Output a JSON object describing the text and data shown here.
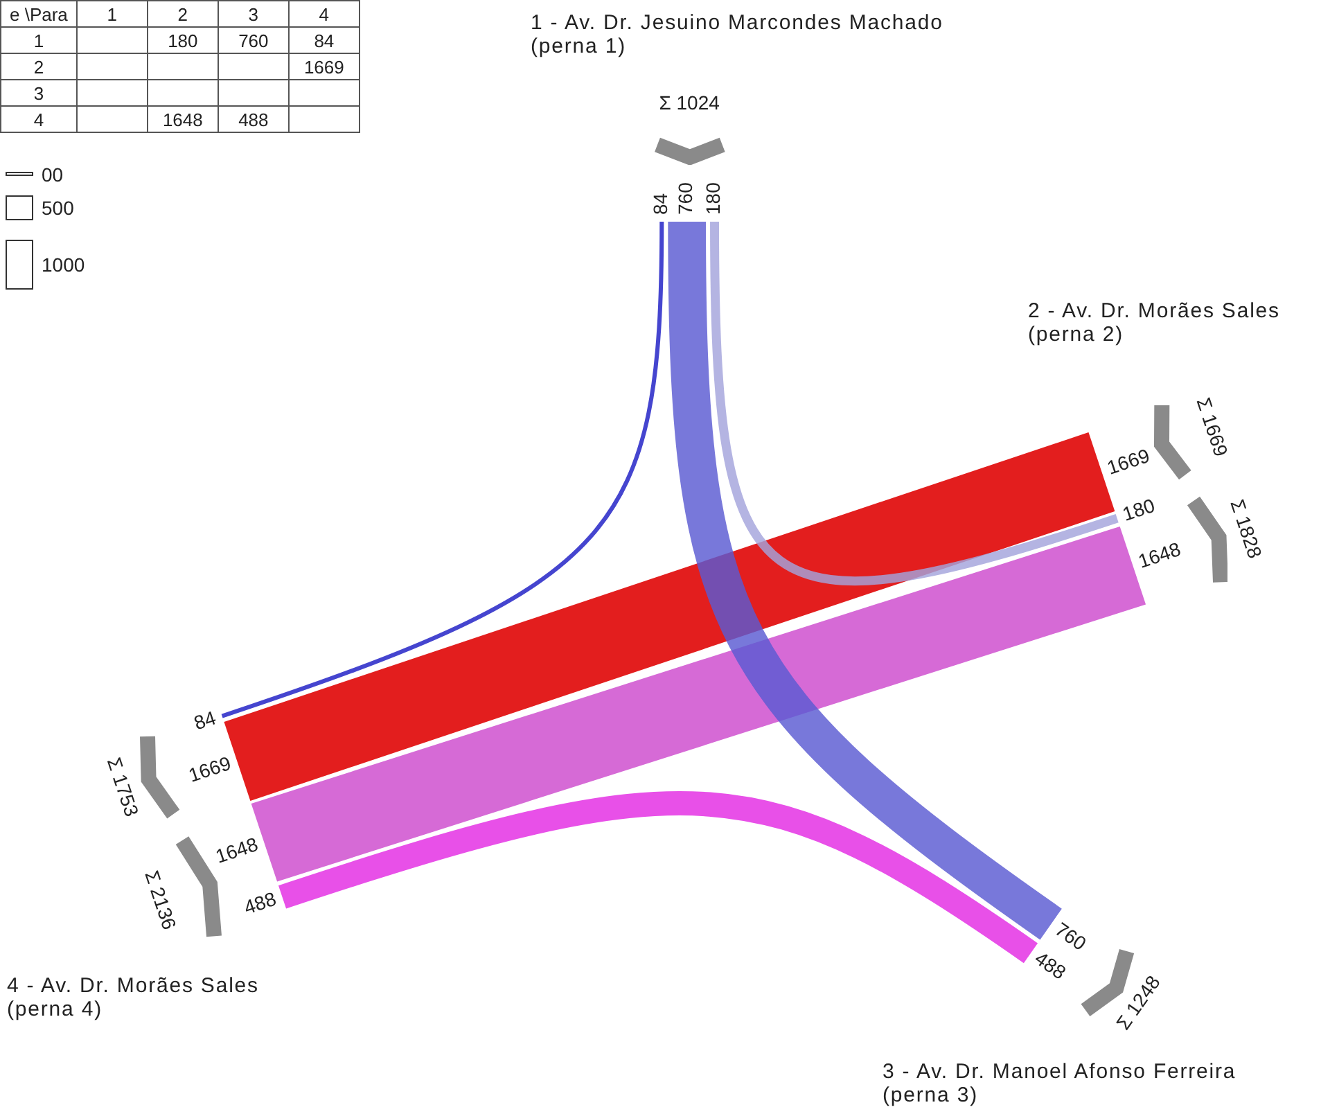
{
  "chart_data": [
    {
      "type": "heatmap",
      "categories": [
        "1",
        "2",
        "3",
        "4"
      ],
      "y_categories": [
        "1",
        "2",
        "3",
        "4"
      ],
      "cells": [
        [
          null,
          180,
          760,
          84
        ],
        [
          null,
          null,
          null,
          1669
        ],
        [
          null,
          null,
          null,
          null
        ],
        [
          null,
          1648,
          488,
          null
        ]
      ],
      "data_labels": true,
      "annotations": [
        "e \\Para"
      ]
    },
    {
      "type": "other",
      "categories": [
        "1 - Av. Dr. Jesuino Marcondes Machado\n(perna 1)",
        "2 - Av. Dr. Morães Sales\n(perna 2)",
        "3 - Av. Dr. Manoel Afonso Ferreira\n(perna 3)",
        "4 - Av. Dr. Morães Sales\n(perna 4)"
      ],
      "series": [
        {
          "values": [
            null,
            180,
            760,
            84
          ],
          "colors": [
            null,
            "#a4a4dc",
            "#5a5ad2",
            "#1c1cc4"
          ]
        },
        {
          "values": [
            null,
            null,
            null,
            1669
          ],
          "colors": [
            null,
            null,
            null,
            "#e31e1e"
          ]
        },
        {
          "values": [
            null,
            null,
            null,
            null
          ]
        },
        {
          "values": [
            null,
            1648,
            488,
            null
          ],
          "colors": [
            null,
            "#d66ad6",
            "#e32ae3",
            null
          ]
        },
        {
          "values": [
            null,
            null,
            null,
            null
          ]
        },
        {
          "values": [
            180,
            null,
            null,
            1648
          ]
        },
        {
          "values": [
            760,
            null,
            null,
            488
          ]
        },
        {
          "values": [
            84,
            1669,
            null,
            null
          ]
        }
      ],
      "data_labels": true,
      "totals": [
        [
          "Σ 1024",
          "Σ 1669",
          null,
          "Σ 2136"
        ],
        [
          null,
          "Σ 1828",
          "Σ 1248",
          "Σ 1753"
        ]
      ],
      "annotations": [
        "00",
        "500",
        "1000"
      ]
    }
  ]
}
